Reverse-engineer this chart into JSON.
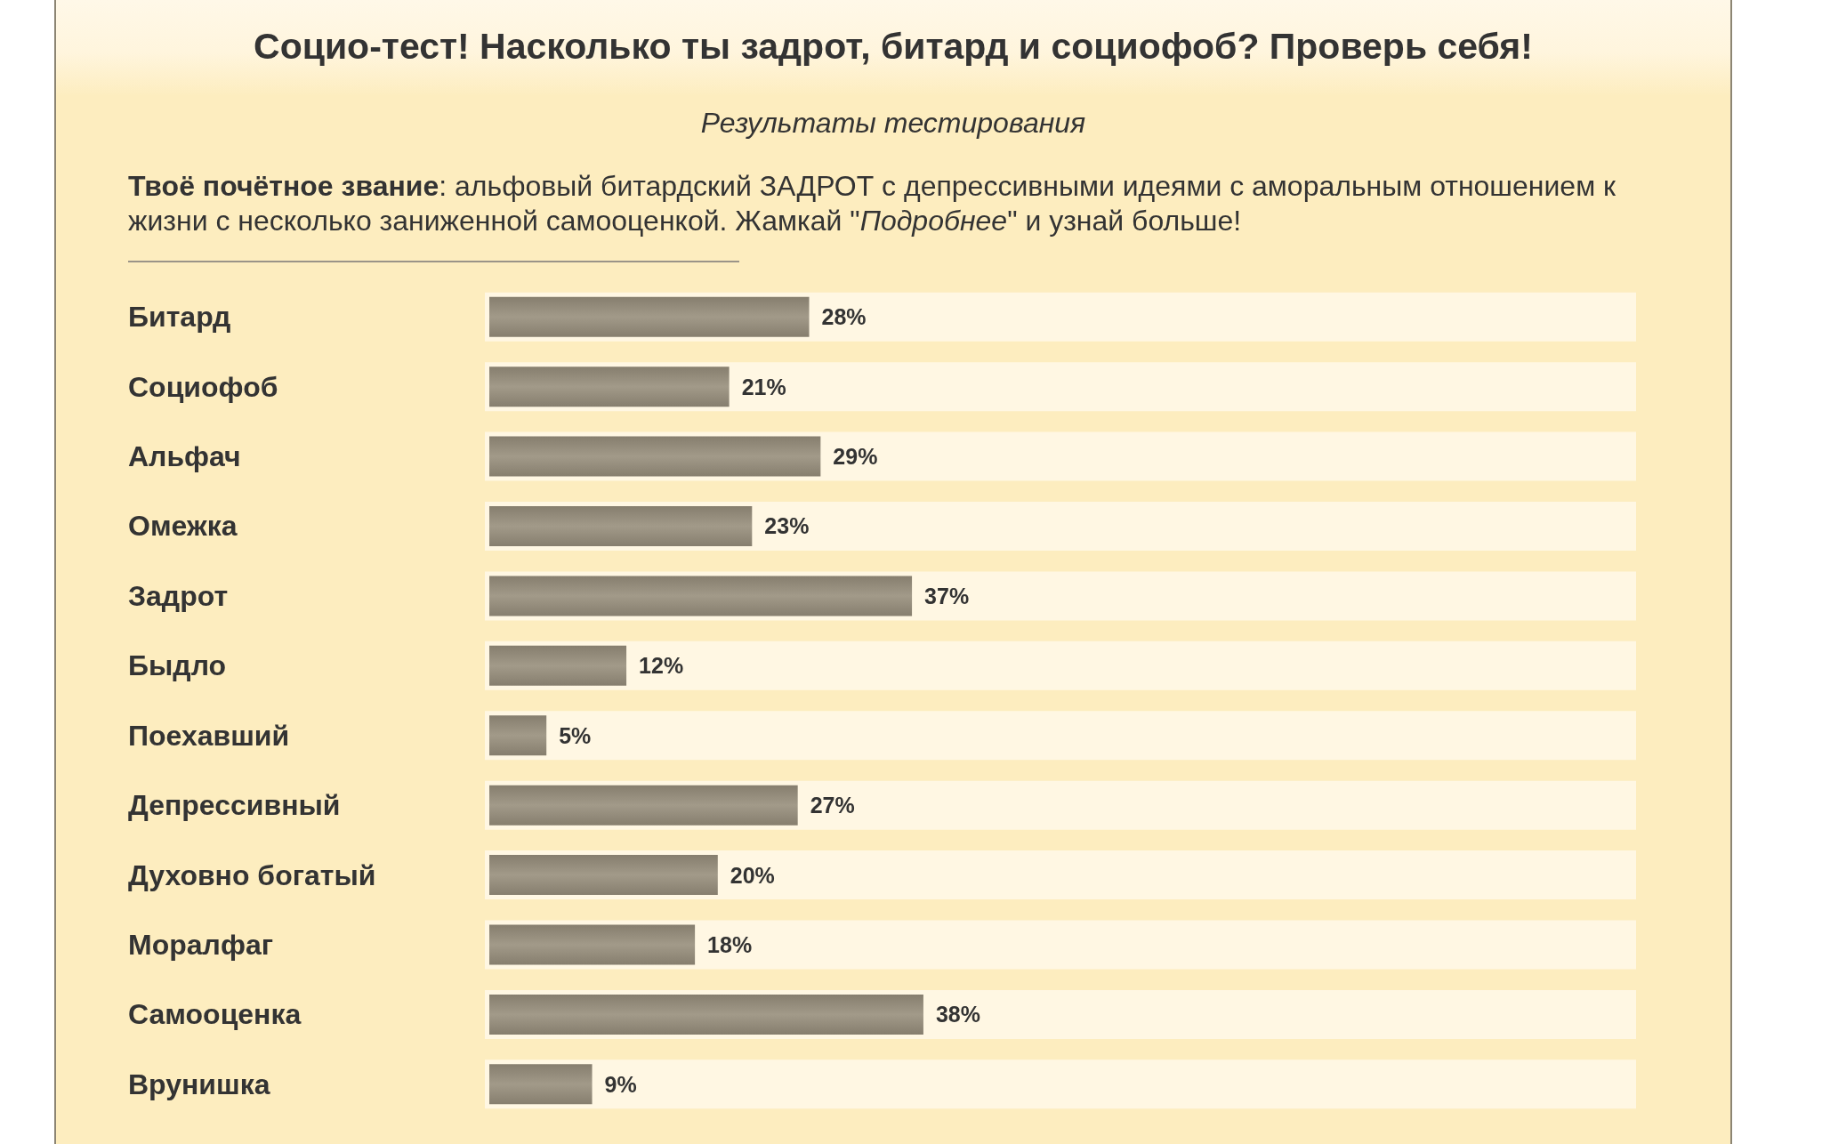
{
  "chart_data": {
    "type": "bar",
    "orientation": "horizontal",
    "title": "Социо-тест! Насколько ты задрот, битард и социофоб? Проверь себя!",
    "subtitle": "Результаты тестирования",
    "annotations": [
      "Твоё почётное звание: альфовый битардский ЗАДРОТ с депрессивными идеями с аморальным отношением к жизни с несколько заниженной самооценкой. Жамкай \"Подробнее\" и узнай больше!"
    ],
    "categories": [
      "Битард",
      "Социофоб",
      "Альфач",
      "Омежка",
      "Задрот",
      "Быдло",
      "Поехавший",
      "Депрессивный",
      "Духовно богатый",
      "Моралфаг",
      "Самооценка",
      "Врунишка"
    ],
    "values": [
      28,
      21,
      29,
      23,
      37,
      12,
      5,
      27,
      20,
      18,
      38,
      9
    ],
    "value_labels": [
      "28%",
      "21%",
      "29%",
      "23%",
      "37%",
      "12%",
      "5%",
      "27%",
      "20%",
      "18%",
      "38%",
      "9%"
    ],
    "color": "#9a917f",
    "xlim": [
      0,
      100
    ],
    "tick_labels": "y"
  }
}
